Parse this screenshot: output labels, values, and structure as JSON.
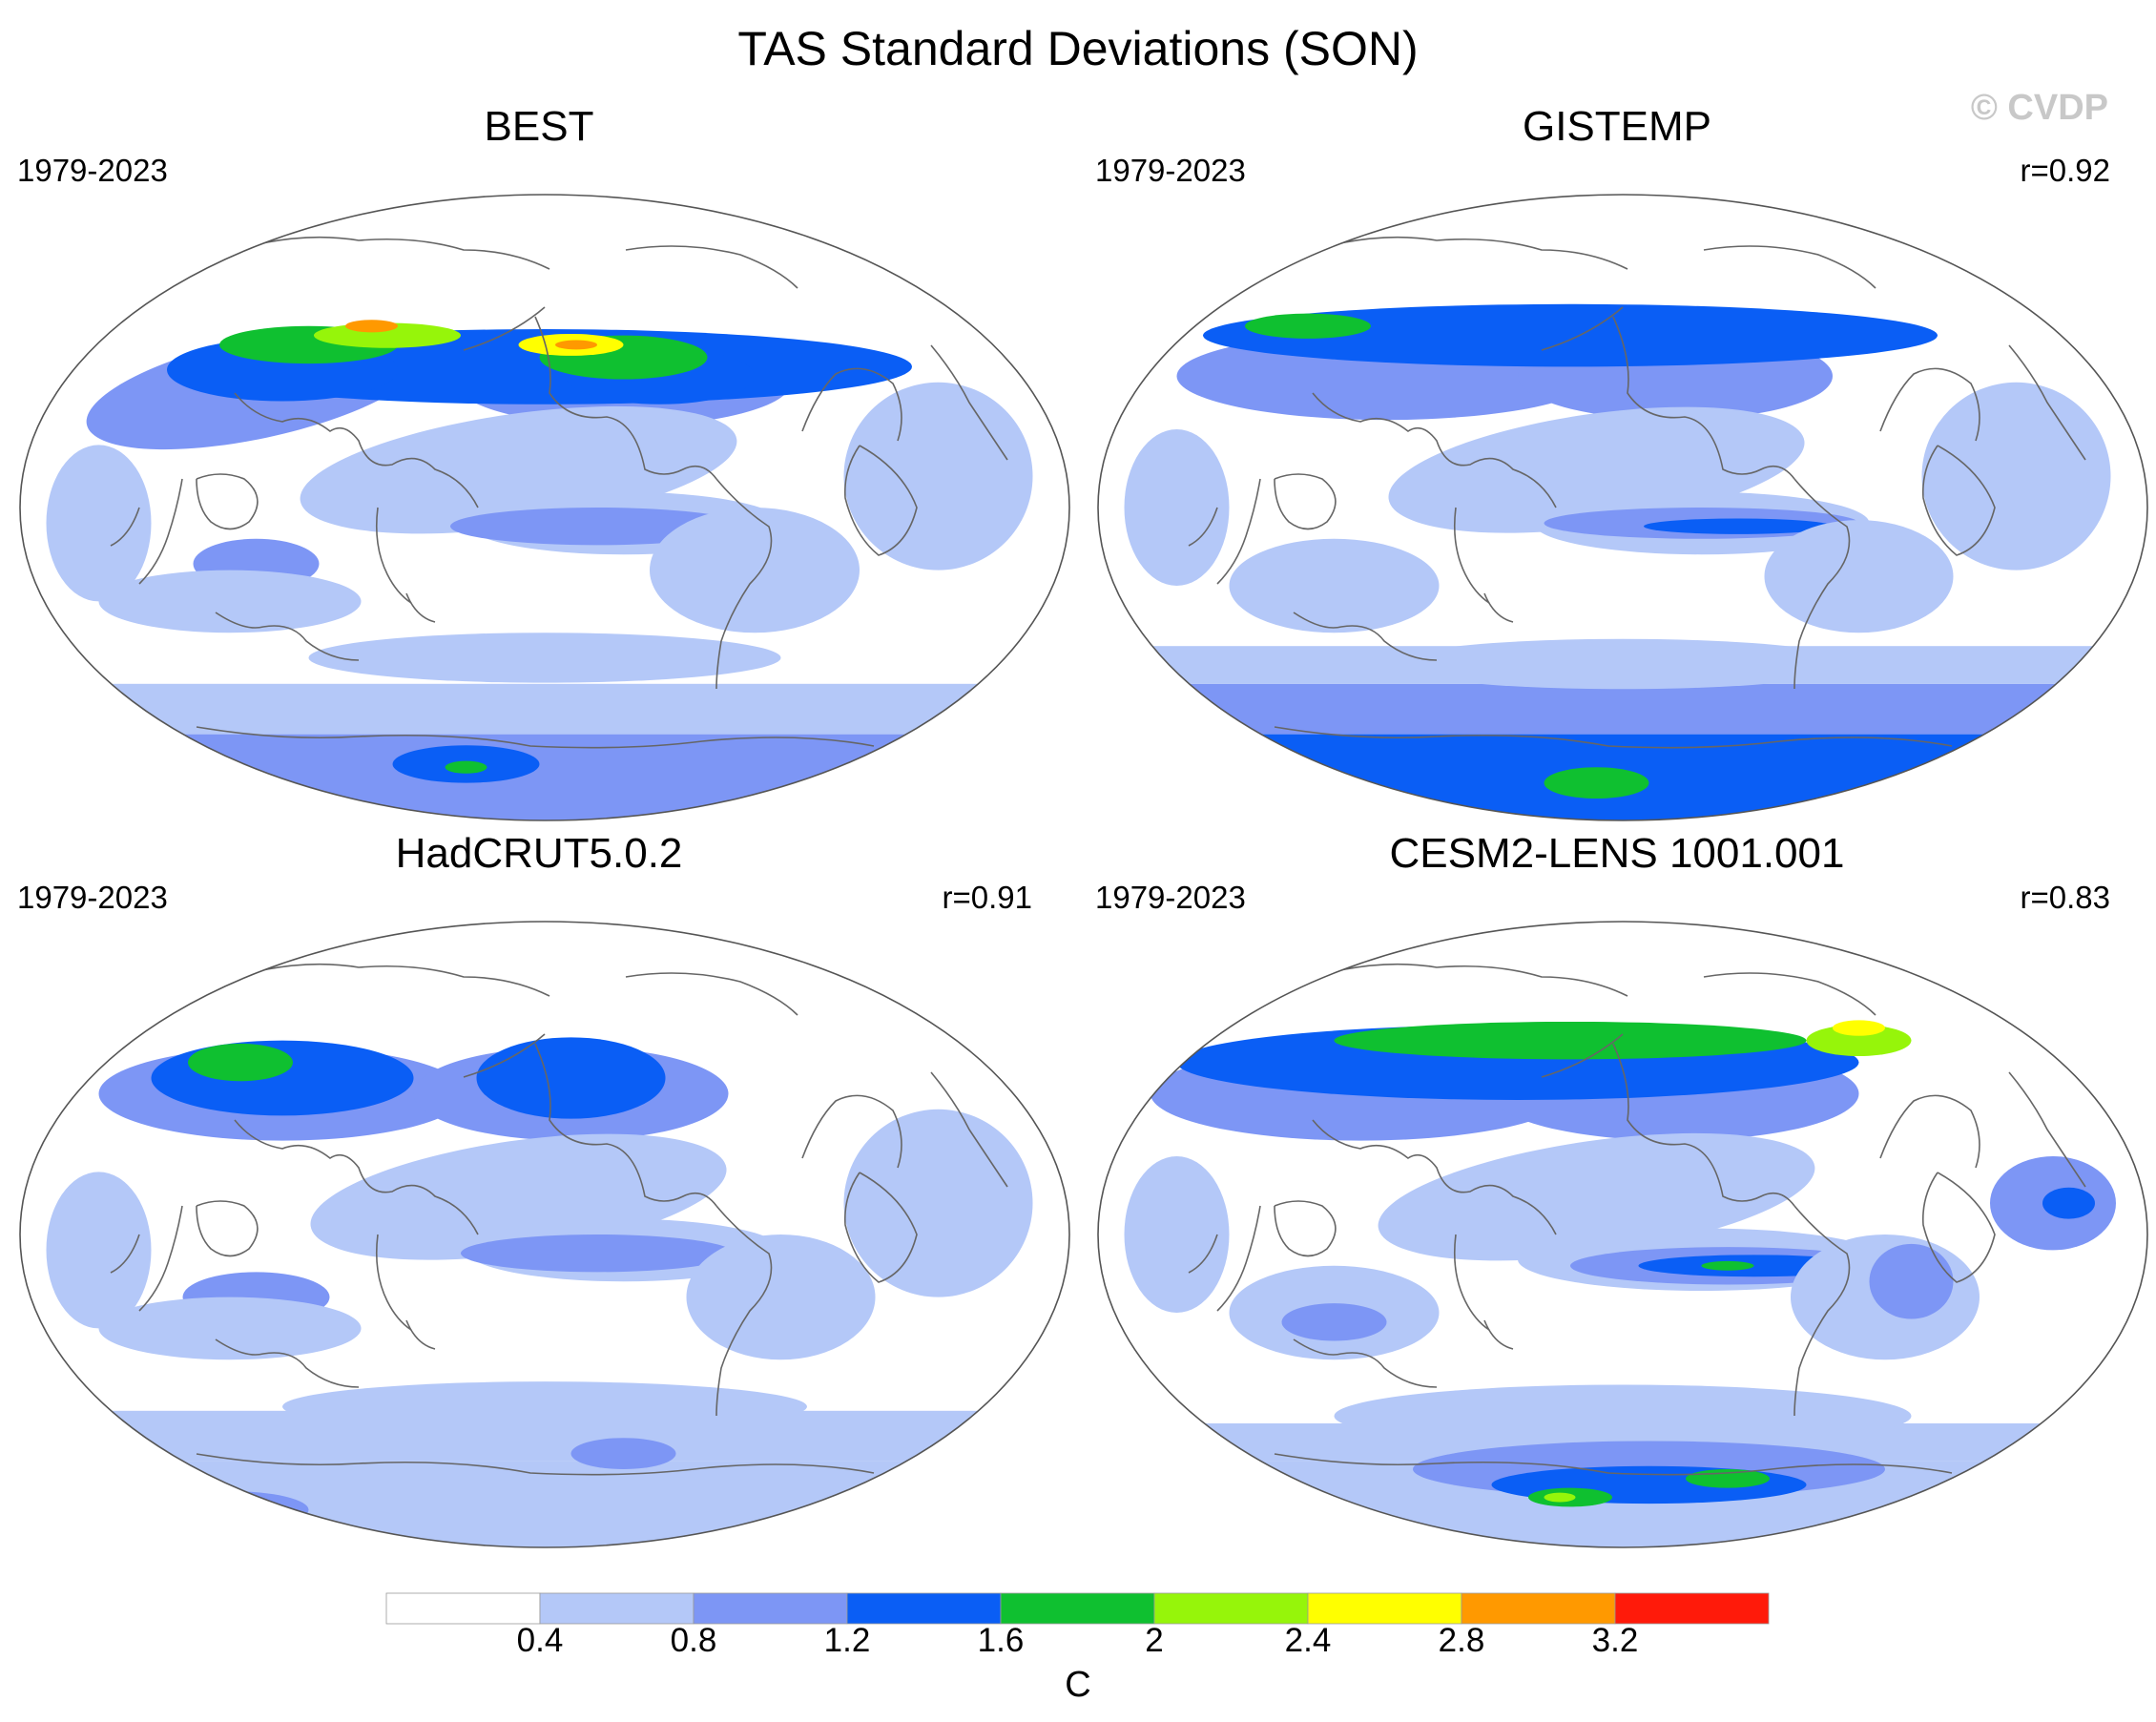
{
  "title": "TAS Standard Deviations (SON)",
  "watermark": "© CVDP",
  "colors": {
    "levels": [
      "#ffffff",
      "#b4c8f8",
      "#7d96f5",
      "#0a5ef5",
      "#0fc030",
      "#96f50a",
      "#ffff00",
      "#ff9900",
      "#ff1a0a"
    ],
    "coastline": "#666666",
    "border": "#555555"
  },
  "chart_data": [
    {
      "type": "heatmap",
      "title": "BEST",
      "period": "1979-2023",
      "correlation": ""
    },
    {
      "type": "heatmap",
      "title": "GISTEMP",
      "period": "1979-2023",
      "correlation": "r=0.92"
    },
    {
      "type": "heatmap",
      "title": "HadCRUT5.0.2",
      "period": "1979-2023",
      "correlation": "r=0.91"
    },
    {
      "type": "heatmap",
      "title": "CESM2-LENS 1001.001",
      "period": "1979-2023",
      "correlation": "r=0.83"
    }
  ],
  "colorbar": {
    "ticks": [
      "0.4",
      "0.8",
      "1.2",
      "1.6",
      "2",
      "2.4",
      "2.8",
      "3.2"
    ],
    "unit": "C"
  }
}
